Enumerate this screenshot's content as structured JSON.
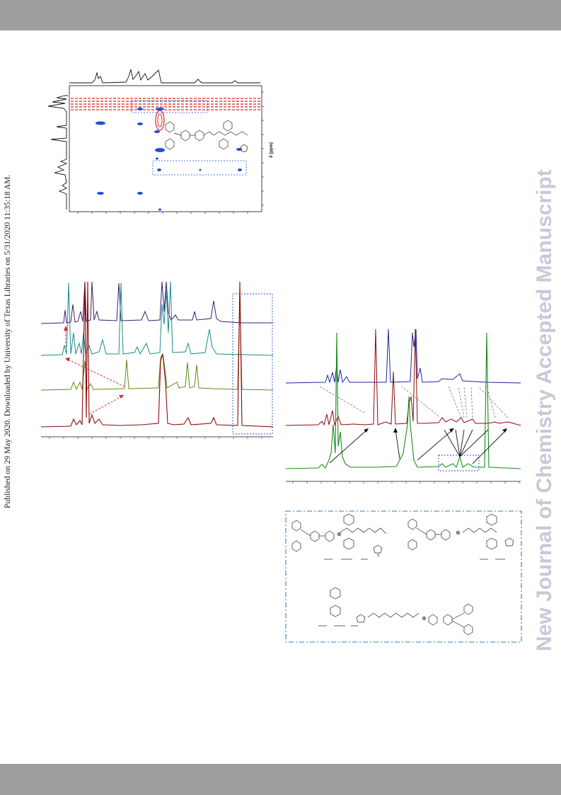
{
  "header": {
    "color": "#9e9e9e"
  },
  "footer": {
    "color": "#9e9e9e"
  },
  "watermark": {
    "text": "New Journal of Chemistry Accepted Manuscript",
    "color": "#c6cad6"
  },
  "publication_note": {
    "text": "Published on 29 May 2020. Downloaded by University of Texas Libraries on 5/31/2020 11:35:18 AM."
  },
  "figures": {
    "noesy": {
      "axis_label": "δ (ppm)",
      "contour_colors": {
        "positive": "#e02020",
        "negative": "#1f4fd8"
      }
    },
    "stacked_spectra_left": {
      "trace_colors": [
        "#3a1f6e",
        "#1a8a8a",
        "#5a8a1a",
        "#8b0a0a"
      ]
    },
    "stacked_spectra_right": {
      "trace_colors": [
        "#1a2a9a",
        "#8b0a0a",
        "#1a8a1a"
      ]
    },
    "structures_box": {
      "border_color": "#2a7fc0",
      "charge_symbol": "⊕",
      "sulfur_label": "S"
    }
  }
}
